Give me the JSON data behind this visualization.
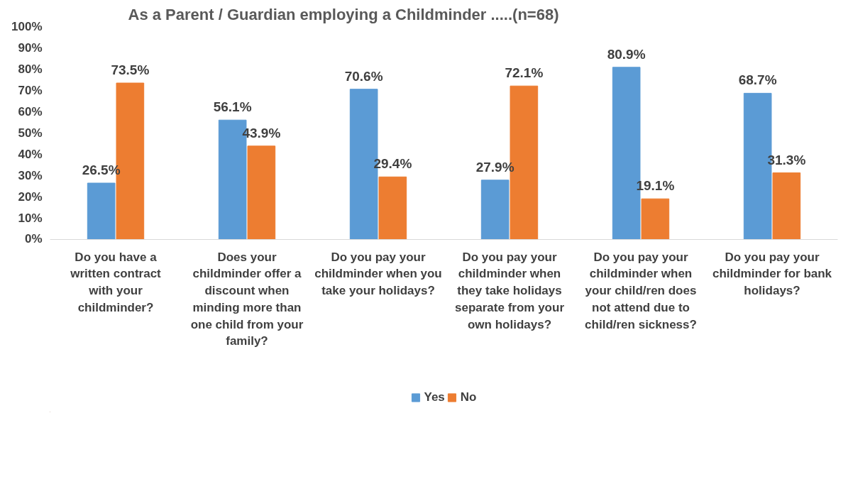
{
  "chart_data": {
    "type": "bar",
    "title": "As a Parent / Guardian employing a Childminder .....(n=68)",
    "categories": [
      "Do you have a written contract with your childminder?",
      "Does your childminder offer a discount when minding more than one child from your family?",
      "Do you pay your childminder when you take your holidays?",
      "Do you pay your childminder when they take holidays separate from your own holidays?",
      "Do you pay your childminder when your child/ren does not attend due to child/ren sickness?",
      "Do you pay your childminder for bank holidays?"
    ],
    "series": [
      {
        "name": "Yes",
        "color": "#5b9bd5",
        "values": [
          26.5,
          56.1,
          70.6,
          27.9,
          80.9,
          68.7
        ],
        "value_labels": [
          "26.5%",
          "56.1%",
          "70.6%",
          "27.9%",
          "80.9%",
          "68.7%"
        ]
      },
      {
        "name": "No",
        "color": "#ed7d31",
        "values": [
          73.5,
          43.9,
          29.4,
          72.1,
          19.1,
          31.3
        ],
        "value_labels": [
          "73.5%",
          "43.9%",
          "29.4%",
          "72.1%",
          "19.1%",
          "31.3%"
        ]
      }
    ],
    "ylim": [
      0,
      100
    ],
    "yticks": [
      {
        "value": 0,
        "label": "0%"
      },
      {
        "value": 10,
        "label": "10%"
      },
      {
        "value": 20,
        "label": "20%"
      },
      {
        "value": 30,
        "label": "30%"
      },
      {
        "value": 40,
        "label": "40%"
      },
      {
        "value": 50,
        "label": "50%"
      },
      {
        "value": 60,
        "label": "60%"
      },
      {
        "value": 70,
        "label": "70%"
      },
      {
        "value": 80,
        "label": "80%"
      },
      {
        "value": 90,
        "label": "90%"
      },
      {
        "value": 100,
        "label": "100%"
      }
    ],
    "grid": false,
    "legend": "bottom"
  }
}
